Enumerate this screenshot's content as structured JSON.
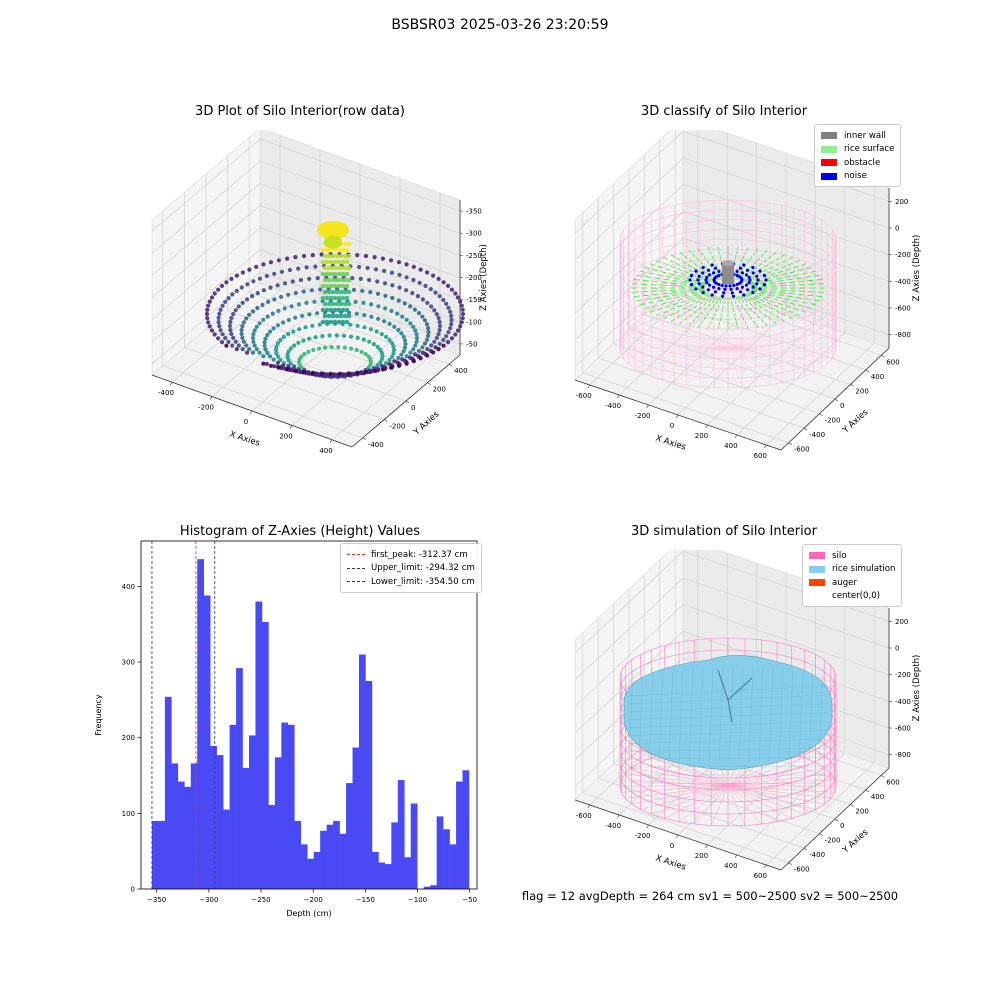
{
  "page": {
    "suptitle": "BSBSR03 2025-03-26 23:20:59",
    "footer": "flag = 12   avgDepth = 264 cm  sv1 = 500~2500  sv2 = 500~2500"
  },
  "colors": {
    "histogram_bar": "#4a4af5",
    "first_peak": "#e03030",
    "limits": "#2c2ca0",
    "inner_wall": "#808080",
    "rice_surface": "#90ee90",
    "obstacle": "#ff0000",
    "noise": "#0000ee",
    "silo": "#ff69b4",
    "rice_simulation": "#87ceeb",
    "auger": "#ff4500"
  },
  "chart_data": [
    {
      "type": "scatter",
      "title": "3D Plot of Silo Interior(row data)",
      "xlabel": "X Axies",
      "ylabel": "Y Axies",
      "zlabel": "Z Axies (Depth)",
      "x_ticks": [
        "-400",
        "-200",
        "0",
        "200",
        "400"
      ],
      "y_ticks": [
        "-400",
        "-200",
        "0",
        "200",
        "400"
      ],
      "z_ticks": [
        "-50",
        "-100",
        "-150",
        "-200",
        "-250",
        "-300",
        "-350"
      ],
      "colormap": "viridis",
      "grid": true
    },
    {
      "type": "scatter",
      "title": "3D classify of Silo Interior",
      "xlabel": "X Axies",
      "ylabel": "Y Axies",
      "zlabel": "Z Axies (Depth)",
      "x_ticks": [
        "-600",
        "-400",
        "-200",
        "0",
        "200",
        "400",
        "600"
      ],
      "y_ticks": [
        "-600",
        "-400",
        "-200",
        "0",
        "200",
        "400",
        "600"
      ],
      "z_ticks": [
        "200",
        "0",
        "-200",
        "-400",
        "-600",
        "-800"
      ],
      "legend": [
        "inner wall",
        "rice surface",
        "obstacle",
        "noise"
      ],
      "legend_position": "top-right",
      "grid": true
    },
    {
      "type": "bar",
      "title": "Histogram of Z-Axies (Height) Values",
      "xlabel": "Depth (cm)",
      "ylabel": "Frequency",
      "xlim": [
        -365,
        -43
      ],
      "ylim": [
        0,
        460
      ],
      "x_ticks": [
        -350,
        -300,
        -250,
        -200,
        -150,
        -100,
        -50
      ],
      "y_ticks": [
        0,
        100,
        200,
        300,
        400
      ],
      "bin_start": -354.5,
      "bin_width": 6.2,
      "values": [
        90,
        90,
        254,
        166,
        142,
        135,
        166,
        436,
        388,
        189,
        177,
        105,
        217,
        292,
        160,
        203,
        380,
        353,
        111,
        174,
        220,
        217,
        90,
        59,
        40,
        49,
        77,
        85,
        90,
        73,
        140,
        187,
        310,
        275,
        49,
        35,
        33,
        88,
        144,
        42,
        113,
        0,
        3,
        5,
        96,
        79,
        59,
        142,
        157
      ],
      "vlines": [
        {
          "name": "first_peak",
          "label": "first_peak: -312.37 cm",
          "x": -312.37,
          "color": "#e03030"
        },
        {
          "name": "upper_limit",
          "label": "Upper_limit: -294.32 cm",
          "x": -294.32,
          "color": "#2c2ca0"
        },
        {
          "name": "lower_limit",
          "label": "Lower_limit: -354.50 cm",
          "x": -354.5,
          "color": "#2c2ca0"
        }
      ],
      "legend_position": "top-right"
    },
    {
      "type": "surface",
      "title": "3D simulation of Silo Interior",
      "xlabel": "X Axies",
      "ylabel": "Y Axies",
      "zlabel": "Z Axies (Depth)",
      "x_ticks": [
        "-600",
        "-400",
        "-200",
        "0",
        "200",
        "400",
        "600"
      ],
      "y_ticks": [
        "-600",
        "-400",
        "-200",
        "0",
        "200",
        "400",
        "600"
      ],
      "z_ticks": [
        "200",
        "0",
        "-200",
        "-400",
        "-600",
        "-800"
      ],
      "legend": [
        "silo",
        "rice simulation",
        "auger",
        "center(0,0)"
      ],
      "legend_position": "top-right",
      "grid": true
    }
  ]
}
